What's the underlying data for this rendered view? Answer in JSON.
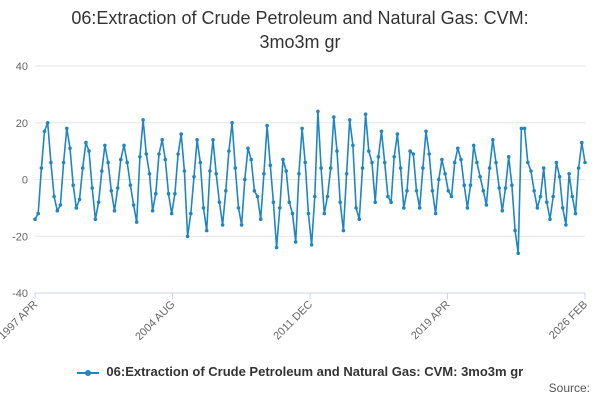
{
  "title_line1": "06:Extraction of Crude Petroleum and Natural Gas: CVM:",
  "title_line2": "3mo3m gr",
  "source_label": "Source:",
  "colors": {
    "series": "#1f86c1",
    "grid": "#e6e6e6",
    "axis": "#ccd6eb"
  },
  "chart_data": {
    "type": "line",
    "title": "06:Extraction of Crude Petroleum and Natural Gas: CVM: 3mo3m gr",
    "xlabel": "",
    "ylabel": "",
    "ylim": [
      -40,
      40
    ],
    "yticks": [
      40,
      20,
      0,
      -20,
      -40
    ],
    "xticks": [
      "1997 APR",
      "2004 AUG",
      "2011 DEC",
      "2019 APR",
      "2026 FEB"
    ],
    "x_range": [
      "1997-04",
      "2026-02"
    ],
    "legend": "bottom",
    "grid": true,
    "series": [
      {
        "name": "06:Extraction of Crude Petroleum and Natural Gas: CVM: 3mo3m gr",
        "values": [
          {
            "x": "1997-04",
            "y": -14
          },
          {
            "x": "1997-06",
            "y": -12
          },
          {
            "x": "1997-08",
            "y": 4
          },
          {
            "x": "1997-10",
            "y": 17
          },
          {
            "x": "1997-12",
            "y": 20
          },
          {
            "x": "1998-02",
            "y": 6
          },
          {
            "x": "1998-04",
            "y": -6
          },
          {
            "x": "1998-06",
            "y": -11
          },
          {
            "x": "1998-08",
            "y": -9
          },
          {
            "x": "1998-10",
            "y": 6
          },
          {
            "x": "1998-12",
            "y": 18
          },
          {
            "x": "1999-02",
            "y": 11
          },
          {
            "x": "1999-04",
            "y": -2
          },
          {
            "x": "1999-06",
            "y": -10
          },
          {
            "x": "1999-08",
            "y": -7
          },
          {
            "x": "1999-10",
            "y": 4
          },
          {
            "x": "1999-12",
            "y": 13
          },
          {
            "x": "2000-02",
            "y": 10
          },
          {
            "x": "2000-04",
            "y": -3
          },
          {
            "x": "2000-06",
            "y": -14
          },
          {
            "x": "2000-08",
            "y": -8
          },
          {
            "x": "2000-10",
            "y": 3
          },
          {
            "x": "2000-12",
            "y": 12
          },
          {
            "x": "2001-02",
            "y": 6
          },
          {
            "x": "2001-04",
            "y": -4
          },
          {
            "x": "2001-06",
            "y": -11
          },
          {
            "x": "2001-08",
            "y": -3
          },
          {
            "x": "2001-10",
            "y": 7
          },
          {
            "x": "2001-12",
            "y": 12
          },
          {
            "x": "2002-02",
            "y": 6
          },
          {
            "x": "2002-04",
            "y": -2
          },
          {
            "x": "2002-06",
            "y": -9
          },
          {
            "x": "2002-08",
            "y": -15
          },
          {
            "x": "2002-10",
            "y": 8
          },
          {
            "x": "2002-12",
            "y": 21
          },
          {
            "x": "2003-02",
            "y": 9
          },
          {
            "x": "2003-04",
            "y": 2
          },
          {
            "x": "2003-06",
            "y": -11
          },
          {
            "x": "2003-08",
            "y": -5
          },
          {
            "x": "2003-10",
            "y": 9
          },
          {
            "x": "2003-12",
            "y": 14
          },
          {
            "x": "2004-02",
            "y": 7
          },
          {
            "x": "2004-04",
            "y": -5
          },
          {
            "x": "2004-06",
            "y": -12
          },
          {
            "x": "2004-08",
            "y": -5
          },
          {
            "x": "2004-10",
            "y": 9
          },
          {
            "x": "2004-12",
            "y": 16
          },
          {
            "x": "2005-02",
            "y": 3
          },
          {
            "x": "2005-04",
            "y": -20
          },
          {
            "x": "2005-06",
            "y": -12
          },
          {
            "x": "2005-08",
            "y": 1
          },
          {
            "x": "2005-10",
            "y": 14
          },
          {
            "x": "2005-12",
            "y": 6
          },
          {
            "x": "2006-02",
            "y": -10
          },
          {
            "x": "2006-04",
            "y": -18
          },
          {
            "x": "2006-06",
            "y": 3
          },
          {
            "x": "2006-08",
            "y": 14
          },
          {
            "x": "2006-10",
            "y": 2
          },
          {
            "x": "2006-12",
            "y": -8
          },
          {
            "x": "2007-02",
            "y": -16
          },
          {
            "x": "2007-04",
            "y": -4
          },
          {
            "x": "2007-06",
            "y": 10
          },
          {
            "x": "2007-08",
            "y": 20
          },
          {
            "x": "2007-10",
            "y": 4
          },
          {
            "x": "2007-12",
            "y": -10
          },
          {
            "x": "2008-02",
            "y": -16
          },
          {
            "x": "2008-04",
            "y": 0
          },
          {
            "x": "2008-06",
            "y": 11
          },
          {
            "x": "2008-08",
            "y": 7
          },
          {
            "x": "2008-10",
            "y": -4
          },
          {
            "x": "2008-12",
            "y": -6
          },
          {
            "x": "2009-02",
            "y": -14
          },
          {
            "x": "2009-04",
            "y": 2
          },
          {
            "x": "2009-06",
            "y": 19
          },
          {
            "x": "2009-08",
            "y": 5
          },
          {
            "x": "2009-10",
            "y": -8
          },
          {
            "x": "2009-12",
            "y": -24
          },
          {
            "x": "2010-02",
            "y": -10
          },
          {
            "x": "2010-04",
            "y": 7
          },
          {
            "x": "2010-06",
            "y": 3
          },
          {
            "x": "2010-08",
            "y": -8
          },
          {
            "x": "2010-10",
            "y": -12
          },
          {
            "x": "2010-12",
            "y": -22
          },
          {
            "x": "2011-02",
            "y": 2
          },
          {
            "x": "2011-04",
            "y": 18
          },
          {
            "x": "2011-06",
            "y": 6
          },
          {
            "x": "2011-08",
            "y": -12
          },
          {
            "x": "2011-10",
            "y": -23
          },
          {
            "x": "2011-12",
            "y": -6
          },
          {
            "x": "2012-02",
            "y": 24
          },
          {
            "x": "2012-04",
            "y": 4
          },
          {
            "x": "2012-06",
            "y": -12
          },
          {
            "x": "2012-08",
            "y": -6
          },
          {
            "x": "2012-10",
            "y": 4
          },
          {
            "x": "2012-12",
            "y": 22
          },
          {
            "x": "2013-02",
            "y": 10
          },
          {
            "x": "2013-04",
            "y": -8
          },
          {
            "x": "2013-06",
            "y": -18
          },
          {
            "x": "2013-08",
            "y": 2
          },
          {
            "x": "2013-10",
            "y": 21
          },
          {
            "x": "2013-12",
            "y": 12
          },
          {
            "x": "2014-02",
            "y": -10
          },
          {
            "x": "2014-04",
            "y": -14
          },
          {
            "x": "2014-06",
            "y": 4
          },
          {
            "x": "2014-08",
            "y": 23
          },
          {
            "x": "2014-10",
            "y": 10
          },
          {
            "x": "2014-12",
            "y": 6
          },
          {
            "x": "2015-02",
            "y": -8
          },
          {
            "x": "2015-04",
            "y": 8
          },
          {
            "x": "2015-06",
            "y": 17
          },
          {
            "x": "2015-08",
            "y": 6
          },
          {
            "x": "2015-10",
            "y": -6
          },
          {
            "x": "2015-12",
            "y": -8
          },
          {
            "x": "2016-02",
            "y": 8
          },
          {
            "x": "2016-04",
            "y": 16
          },
          {
            "x": "2016-06",
            "y": 4
          },
          {
            "x": "2016-08",
            "y": -10
          },
          {
            "x": "2016-10",
            "y": -4
          },
          {
            "x": "2016-12",
            "y": 10
          },
          {
            "x": "2017-02",
            "y": 9
          },
          {
            "x": "2017-04",
            "y": -4
          },
          {
            "x": "2017-06",
            "y": -10
          },
          {
            "x": "2017-08",
            "y": 4
          },
          {
            "x": "2017-10",
            "y": 17
          },
          {
            "x": "2017-12",
            "y": 9
          },
          {
            "x": "2018-02",
            "y": -4
          },
          {
            "x": "2018-04",
            "y": -12
          },
          {
            "x": "2018-06",
            "y": 0
          },
          {
            "x": "2018-08",
            "y": 7
          },
          {
            "x": "2018-10",
            "y": 2
          },
          {
            "x": "2018-12",
            "y": -4
          },
          {
            "x": "2019-02",
            "y": -6
          },
          {
            "x": "2019-04",
            "y": 6
          },
          {
            "x": "2019-06",
            "y": 11
          },
          {
            "x": "2019-08",
            "y": 7
          },
          {
            "x": "2019-10",
            "y": -2
          },
          {
            "x": "2019-12",
            "y": -10
          },
          {
            "x": "2020-02",
            "y": -2
          },
          {
            "x": "2020-04",
            "y": 12
          },
          {
            "x": "2020-06",
            "y": 6
          },
          {
            "x": "2020-08",
            "y": 1
          },
          {
            "x": "2020-10",
            "y": -4
          },
          {
            "x": "2020-12",
            "y": -9
          },
          {
            "x": "2021-02",
            "y": 4
          },
          {
            "x": "2021-04",
            "y": 14
          },
          {
            "x": "2021-06",
            "y": 6
          },
          {
            "x": "2021-08",
            "y": -3
          },
          {
            "x": "2021-10",
            "y": -11
          },
          {
            "x": "2021-12",
            "y": -3
          },
          {
            "x": "2022-02",
            "y": 8
          },
          {
            "x": "2022-04",
            "y": -2
          },
          {
            "x": "2022-06",
            "y": -18
          },
          {
            "x": "2022-08",
            "y": -26
          },
          {
            "x": "2022-10",
            "y": 18
          },
          {
            "x": "2022-12",
            "y": 18
          },
          {
            "x": "2023-02",
            "y": 6
          },
          {
            "x": "2023-04",
            "y": 3
          },
          {
            "x": "2023-06",
            "y": -4
          },
          {
            "x": "2023-08",
            "y": -10
          },
          {
            "x": "2023-10",
            "y": -6
          },
          {
            "x": "2023-12",
            "y": 4
          },
          {
            "x": "2024-02",
            "y": -8
          },
          {
            "x": "2024-04",
            "y": -14
          },
          {
            "x": "2024-06",
            "y": -6
          },
          {
            "x": "2024-08",
            "y": 6
          },
          {
            "x": "2024-10",
            "y": 1
          },
          {
            "x": "2024-12",
            "y": -10
          },
          {
            "x": "2025-02",
            "y": -16
          },
          {
            "x": "2025-04",
            "y": 2
          },
          {
            "x": "2025-06",
            "y": -6
          },
          {
            "x": "2025-08",
            "y": -12
          },
          {
            "x": "2025-10",
            "y": 4
          },
          {
            "x": "2025-12",
            "y": 13
          },
          {
            "x": "2026-02",
            "y": 6
          }
        ]
      }
    ]
  }
}
